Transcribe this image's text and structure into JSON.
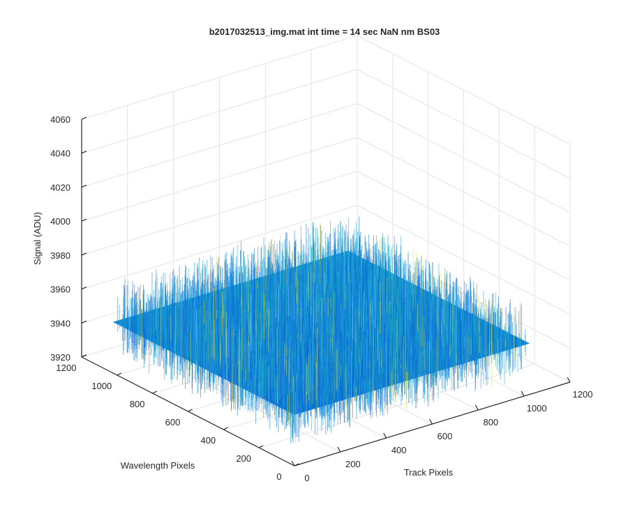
{
  "chart_data": {
    "type": "surface",
    "title": "b2017032513_img.mat int time = 14 sec  NaN nm BS03",
    "xlabel": "Track Pixels",
    "ylabel": "Wavelength Pixels",
    "zlabel": "Signal (ADU)",
    "xlim": [
      0,
      1200
    ],
    "ylim": [
      0,
      1200
    ],
    "zlim": [
      3920,
      4060
    ],
    "x_ticks": [
      "0",
      "200",
      "400",
      "600",
      "800",
      "1000",
      "1200"
    ],
    "y_ticks": [
      "0",
      "200",
      "400",
      "600",
      "800",
      "1000",
      "1200"
    ],
    "z_ticks": [
      "3920",
      "3940",
      "3960",
      "3980",
      "4000",
      "4020",
      "4040",
      "4060"
    ],
    "surface": {
      "x_range": [
        0,
        1024
      ],
      "y_range": [
        0,
        1024
      ],
      "mean_signal": 3950,
      "noise_min": 3930,
      "noise_max": 3975
    },
    "grid": true,
    "colors": {
      "low": "#0b6fd6",
      "mid": "#1ea3cf",
      "high": "#c8d85a"
    }
  }
}
